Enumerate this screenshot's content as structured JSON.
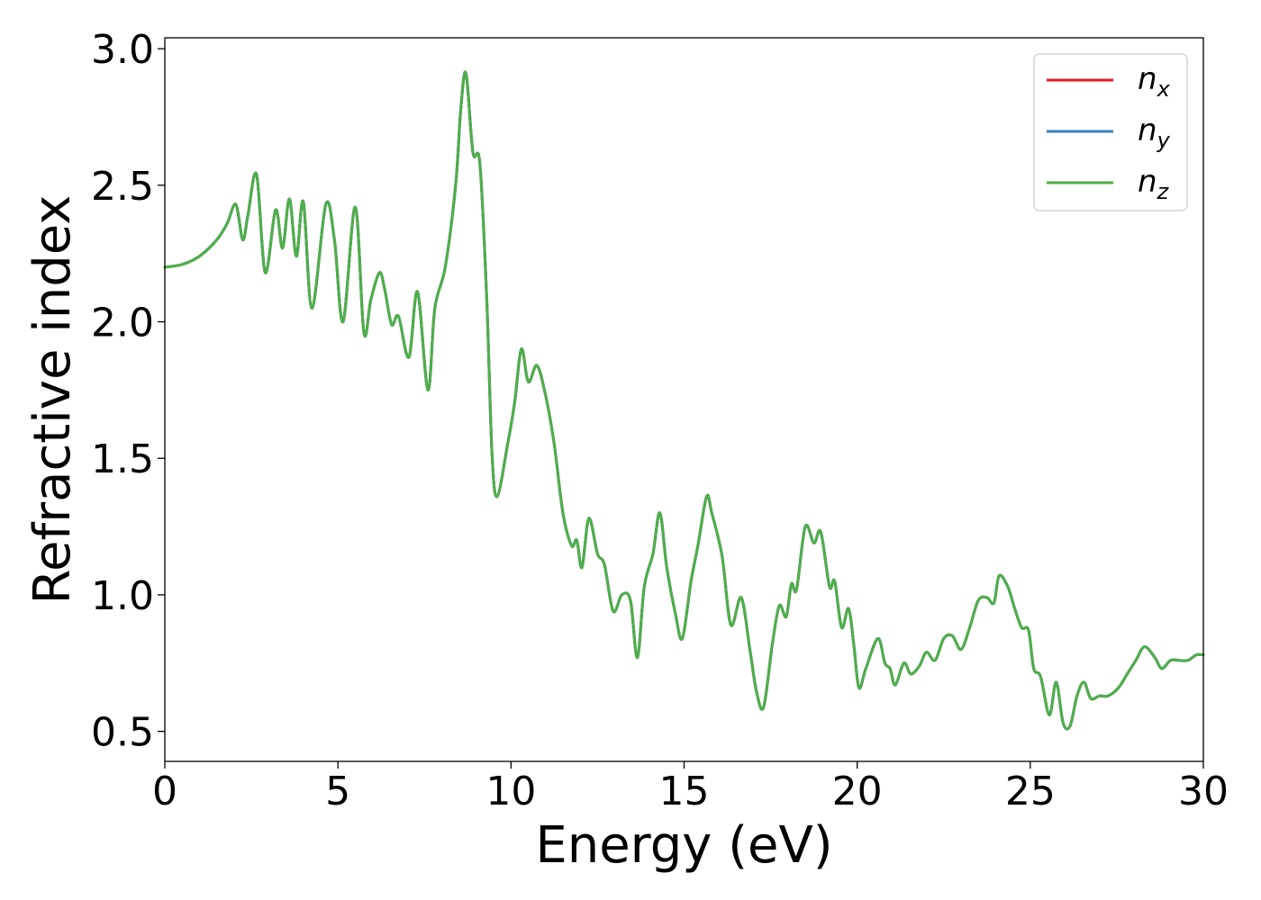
{
  "chart_data": {
    "type": "line",
    "title": "",
    "xlabel": "Energy (eV)",
    "ylabel": "Refractive index",
    "xlim": [
      0,
      30
    ],
    "ylim": [
      0.39,
      3.04
    ],
    "xticks": [
      0,
      5,
      10,
      15,
      20,
      25,
      30
    ],
    "yticks": [
      0.5,
      1.0,
      1.5,
      2.0,
      2.5,
      3.0
    ],
    "xtick_labels": [
      "0",
      "5",
      "10",
      "15",
      "20",
      "25",
      "30"
    ],
    "ytick_labels": [
      "0.5",
      "1.0",
      "1.5",
      "2.0",
      "2.5",
      "3.0"
    ],
    "grid": false,
    "legend_position": "top-right",
    "series": [
      {
        "name": "n_x",
        "label_main": "n",
        "label_sub": "x",
        "color": "#e41a1c"
      },
      {
        "name": "n_y",
        "label_main": "n",
        "label_sub": "y",
        "color": "#377eb8"
      },
      {
        "name": "n_z",
        "label_main": "n",
        "label_sub": "z",
        "color": "#4daf4a"
      }
    ],
    "x": [
      0,
      0.5,
      1.0,
      1.5,
      1.8,
      2.05,
      2.25,
      2.4,
      2.65,
      2.9,
      3.2,
      3.4,
      3.6,
      3.8,
      4.0,
      4.25,
      4.65,
      4.9,
      5.15,
      5.5,
      5.75,
      5.95,
      6.2,
      6.35,
      6.55,
      6.75,
      7.05,
      7.3,
      7.6,
      7.8,
      8.1,
      8.4,
      8.55,
      8.7,
      8.9,
      9.1,
      9.3,
      9.45,
      9.6,
      9.9,
      10.1,
      10.3,
      10.5,
      10.75,
      11.0,
      11.25,
      11.5,
      11.75,
      11.9,
      12.05,
      12.25,
      12.5,
      12.7,
      12.95,
      13.2,
      13.45,
      13.65,
      13.85,
      14.1,
      14.3,
      14.5,
      14.75,
      14.95,
      15.2,
      15.4,
      15.65,
      15.8,
      16.1,
      16.35,
      16.65,
      16.9,
      17.1,
      17.3,
      17.55,
      17.75,
      17.95,
      18.1,
      18.25,
      18.5,
      18.75,
      18.95,
      19.2,
      19.35,
      19.55,
      19.75,
      19.9,
      20.05,
      20.25,
      20.6,
      20.8,
      20.95,
      21.1,
      21.35,
      21.55,
      21.8,
      22.0,
      22.25,
      22.5,
      22.75,
      23.0,
      23.25,
      23.5,
      23.75,
      23.95,
      24.1,
      24.35,
      24.55,
      24.75,
      24.95,
      25.1,
      25.3,
      25.55,
      25.75,
      25.95,
      26.15,
      26.35,
      26.55,
      26.75,
      27.0,
      27.25,
      27.55,
      27.8,
      28.05,
      28.3,
      28.6,
      28.8,
      29.05,
      29.3,
      29.55,
      29.8,
      30.0
    ],
    "y": [
      2.2,
      2.21,
      2.24,
      2.3,
      2.36,
      2.43,
      2.3,
      2.39,
      2.54,
      2.18,
      2.41,
      2.27,
      2.45,
      2.24,
      2.44,
      2.05,
      2.43,
      2.3,
      2.0,
      2.42,
      1.96,
      2.08,
      2.18,
      2.12,
      1.99,
      2.02,
      1.87,
      2.11,
      1.75,
      2.05,
      2.2,
      2.5,
      2.78,
      2.91,
      2.62,
      2.58,
      2.08,
      1.52,
      1.36,
      1.55,
      1.7,
      1.9,
      1.78,
      1.84,
      1.73,
      1.55,
      1.3,
      1.18,
      1.2,
      1.1,
      1.28,
      1.15,
      1.11,
      0.94,
      1.0,
      0.98,
      0.77,
      1.03,
      1.15,
      1.3,
      1.1,
      0.93,
      0.84,
      1.05,
      1.18,
      1.36,
      1.3,
      1.14,
      0.89,
      0.99,
      0.8,
      0.64,
      0.59,
      0.82,
      0.96,
      0.92,
      1.04,
      1.02,
      1.25,
      1.19,
      1.23,
      1.03,
      1.05,
      0.88,
      0.95,
      0.82,
      0.66,
      0.73,
      0.84,
      0.75,
      0.73,
      0.67,
      0.75,
      0.71,
      0.74,
      0.79,
      0.76,
      0.84,
      0.85,
      0.8,
      0.88,
      0.98,
      0.99,
      0.97,
      1.07,
      1.03,
      0.95,
      0.88,
      0.87,
      0.73,
      0.7,
      0.56,
      0.68,
      0.53,
      0.52,
      0.63,
      0.68,
      0.62,
      0.63,
      0.63,
      0.66,
      0.71,
      0.76,
      0.81,
      0.77,
      0.73,
      0.76,
      0.76,
      0.76,
      0.78,
      0.78
    ]
  }
}
